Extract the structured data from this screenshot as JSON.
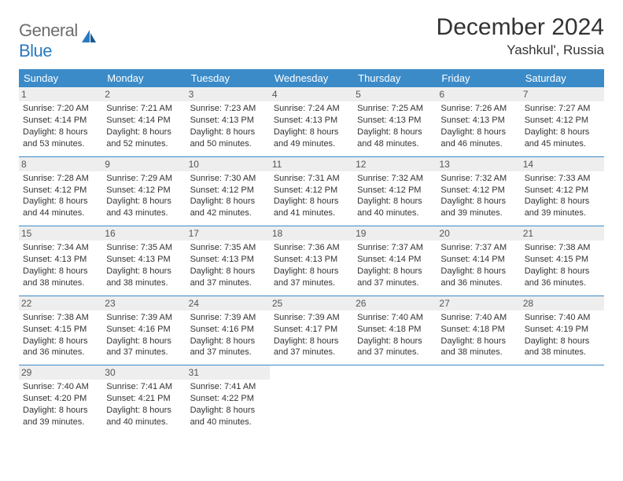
{
  "logo": {
    "part1": "General",
    "part2": "Blue"
  },
  "title": "December 2024",
  "location": "Yashkul', Russia",
  "colors": {
    "header_bg": "#3b8bc8",
    "header_text": "#ffffff",
    "cell_border": "#3b8bc8",
    "daynum_bg": "#eeeeee",
    "logo_gray": "#6e6e6e",
    "logo_blue": "#2a7ac0",
    "text": "#333333"
  },
  "day_headers": [
    "Sunday",
    "Monday",
    "Tuesday",
    "Wednesday",
    "Thursday",
    "Friday",
    "Saturday"
  ],
  "weeks": [
    [
      {
        "n": "1",
        "sr": "Sunrise: 7:20 AM",
        "ss": "Sunset: 4:14 PM",
        "dl": "Daylight: 8 hours and 53 minutes."
      },
      {
        "n": "2",
        "sr": "Sunrise: 7:21 AM",
        "ss": "Sunset: 4:14 PM",
        "dl": "Daylight: 8 hours and 52 minutes."
      },
      {
        "n": "3",
        "sr": "Sunrise: 7:23 AM",
        "ss": "Sunset: 4:13 PM",
        "dl": "Daylight: 8 hours and 50 minutes."
      },
      {
        "n": "4",
        "sr": "Sunrise: 7:24 AM",
        "ss": "Sunset: 4:13 PM",
        "dl": "Daylight: 8 hours and 49 minutes."
      },
      {
        "n": "5",
        "sr": "Sunrise: 7:25 AM",
        "ss": "Sunset: 4:13 PM",
        "dl": "Daylight: 8 hours and 48 minutes."
      },
      {
        "n": "6",
        "sr": "Sunrise: 7:26 AM",
        "ss": "Sunset: 4:13 PM",
        "dl": "Daylight: 8 hours and 46 minutes."
      },
      {
        "n": "7",
        "sr": "Sunrise: 7:27 AM",
        "ss": "Sunset: 4:12 PM",
        "dl": "Daylight: 8 hours and 45 minutes."
      }
    ],
    [
      {
        "n": "8",
        "sr": "Sunrise: 7:28 AM",
        "ss": "Sunset: 4:12 PM",
        "dl": "Daylight: 8 hours and 44 minutes."
      },
      {
        "n": "9",
        "sr": "Sunrise: 7:29 AM",
        "ss": "Sunset: 4:12 PM",
        "dl": "Daylight: 8 hours and 43 minutes."
      },
      {
        "n": "10",
        "sr": "Sunrise: 7:30 AM",
        "ss": "Sunset: 4:12 PM",
        "dl": "Daylight: 8 hours and 42 minutes."
      },
      {
        "n": "11",
        "sr": "Sunrise: 7:31 AM",
        "ss": "Sunset: 4:12 PM",
        "dl": "Daylight: 8 hours and 41 minutes."
      },
      {
        "n": "12",
        "sr": "Sunrise: 7:32 AM",
        "ss": "Sunset: 4:12 PM",
        "dl": "Daylight: 8 hours and 40 minutes."
      },
      {
        "n": "13",
        "sr": "Sunrise: 7:32 AM",
        "ss": "Sunset: 4:12 PM",
        "dl": "Daylight: 8 hours and 39 minutes."
      },
      {
        "n": "14",
        "sr": "Sunrise: 7:33 AM",
        "ss": "Sunset: 4:12 PM",
        "dl": "Daylight: 8 hours and 39 minutes."
      }
    ],
    [
      {
        "n": "15",
        "sr": "Sunrise: 7:34 AM",
        "ss": "Sunset: 4:13 PM",
        "dl": "Daylight: 8 hours and 38 minutes."
      },
      {
        "n": "16",
        "sr": "Sunrise: 7:35 AM",
        "ss": "Sunset: 4:13 PM",
        "dl": "Daylight: 8 hours and 38 minutes."
      },
      {
        "n": "17",
        "sr": "Sunrise: 7:35 AM",
        "ss": "Sunset: 4:13 PM",
        "dl": "Daylight: 8 hours and 37 minutes."
      },
      {
        "n": "18",
        "sr": "Sunrise: 7:36 AM",
        "ss": "Sunset: 4:13 PM",
        "dl": "Daylight: 8 hours and 37 minutes."
      },
      {
        "n": "19",
        "sr": "Sunrise: 7:37 AM",
        "ss": "Sunset: 4:14 PM",
        "dl": "Daylight: 8 hours and 37 minutes."
      },
      {
        "n": "20",
        "sr": "Sunrise: 7:37 AM",
        "ss": "Sunset: 4:14 PM",
        "dl": "Daylight: 8 hours and 36 minutes."
      },
      {
        "n": "21",
        "sr": "Sunrise: 7:38 AM",
        "ss": "Sunset: 4:15 PM",
        "dl": "Daylight: 8 hours and 36 minutes."
      }
    ],
    [
      {
        "n": "22",
        "sr": "Sunrise: 7:38 AM",
        "ss": "Sunset: 4:15 PM",
        "dl": "Daylight: 8 hours and 36 minutes."
      },
      {
        "n": "23",
        "sr": "Sunrise: 7:39 AM",
        "ss": "Sunset: 4:16 PM",
        "dl": "Daylight: 8 hours and 37 minutes."
      },
      {
        "n": "24",
        "sr": "Sunrise: 7:39 AM",
        "ss": "Sunset: 4:16 PM",
        "dl": "Daylight: 8 hours and 37 minutes."
      },
      {
        "n": "25",
        "sr": "Sunrise: 7:39 AM",
        "ss": "Sunset: 4:17 PM",
        "dl": "Daylight: 8 hours and 37 minutes."
      },
      {
        "n": "26",
        "sr": "Sunrise: 7:40 AM",
        "ss": "Sunset: 4:18 PM",
        "dl": "Daylight: 8 hours and 37 minutes."
      },
      {
        "n": "27",
        "sr": "Sunrise: 7:40 AM",
        "ss": "Sunset: 4:18 PM",
        "dl": "Daylight: 8 hours and 38 minutes."
      },
      {
        "n": "28",
        "sr": "Sunrise: 7:40 AM",
        "ss": "Sunset: 4:19 PM",
        "dl": "Daylight: 8 hours and 38 minutes."
      }
    ],
    [
      {
        "n": "29",
        "sr": "Sunrise: 7:40 AM",
        "ss": "Sunset: 4:20 PM",
        "dl": "Daylight: 8 hours and 39 minutes."
      },
      {
        "n": "30",
        "sr": "Sunrise: 7:41 AM",
        "ss": "Sunset: 4:21 PM",
        "dl": "Daylight: 8 hours and 40 minutes."
      },
      {
        "n": "31",
        "sr": "Sunrise: 7:41 AM",
        "ss": "Sunset: 4:22 PM",
        "dl": "Daylight: 8 hours and 40 minutes."
      },
      null,
      null,
      null,
      null
    ]
  ]
}
